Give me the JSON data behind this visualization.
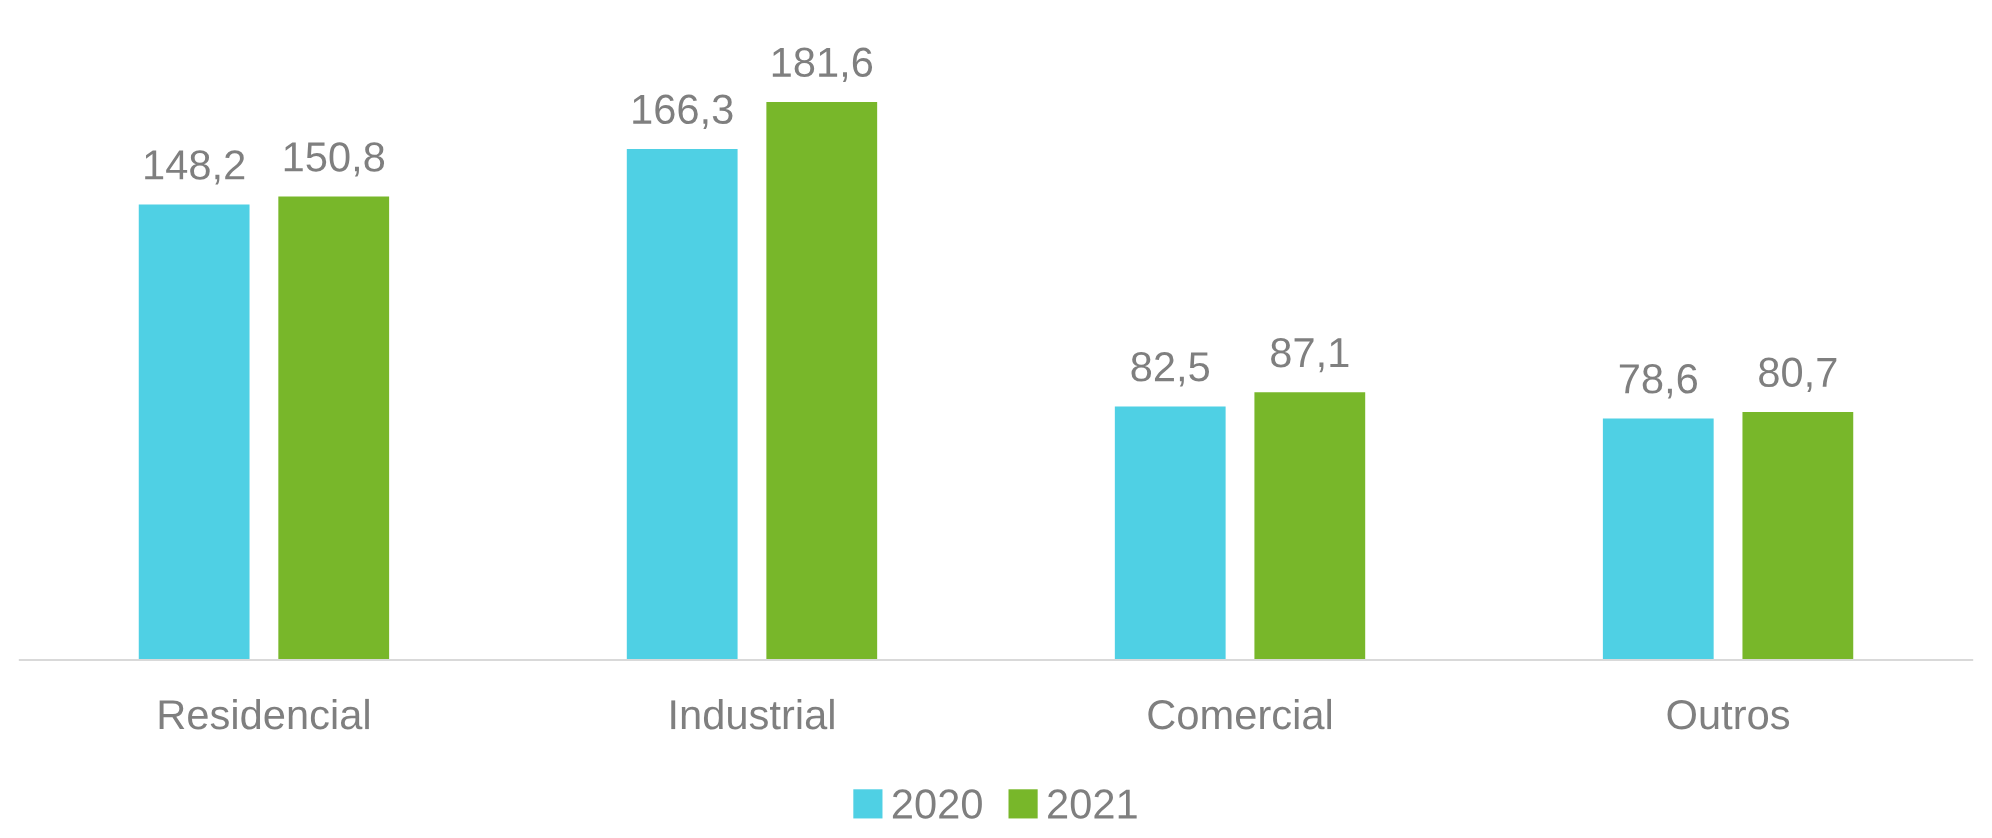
{
  "chart_data": {
    "type": "bar",
    "categories": [
      "Residencial",
      "Industrial",
      "Comercial",
      "Outros"
    ],
    "series": [
      {
        "name": "2020",
        "color": "#4fd0e4",
        "values": [
          148.2,
          166.3,
          82.5,
          78.6
        ],
        "value_labels": [
          "148,2",
          "166,3",
          "82,5",
          "78,6"
        ]
      },
      {
        "name": "2021",
        "color": "#78b72a",
        "values": [
          150.8,
          181.6,
          87.1,
          80.7
        ],
        "value_labels": [
          "150,8",
          "181,6",
          "87,1",
          "80,7"
        ]
      }
    ],
    "legend": "bottom",
    "grid": false
  }
}
